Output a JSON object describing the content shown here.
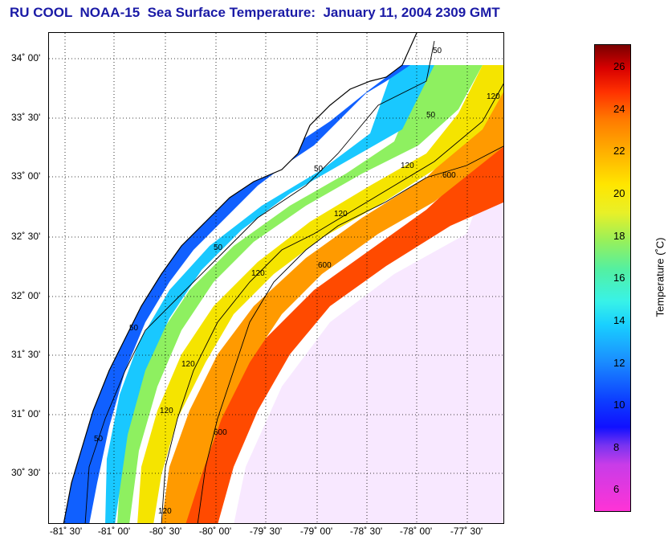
{
  "title": "RU COOL  NOAA-15  Sea Surface Temperature:  January 11, 2004 2309 GMT",
  "map": {
    "lat_labels": [
      "34˚ 00'",
      "33˚ 30'",
      "33˚ 00'",
      "32˚ 30'",
      "32˚ 00'",
      "31˚ 30'",
      "31˚ 00'",
      "30˚ 30'"
    ],
    "lon_labels": [
      "-81˚ 30'",
      "-81˚ 00'",
      "-80˚ 30'",
      "-80˚ 00'",
      "-79˚ 30'",
      "-79˚ 00'",
      "-78˚ 30'",
      "-78˚ 00'",
      "-77˚ 30'"
    ],
    "isobaths": [
      "50",
      "120",
      "600"
    ]
  },
  "colorbar": {
    "label": "Temperature (˚C)",
    "ticks": [
      "26",
      "24",
      "22",
      "20",
      "18",
      "16",
      "14",
      "12",
      "10",
      "8",
      "6"
    ]
  }
}
